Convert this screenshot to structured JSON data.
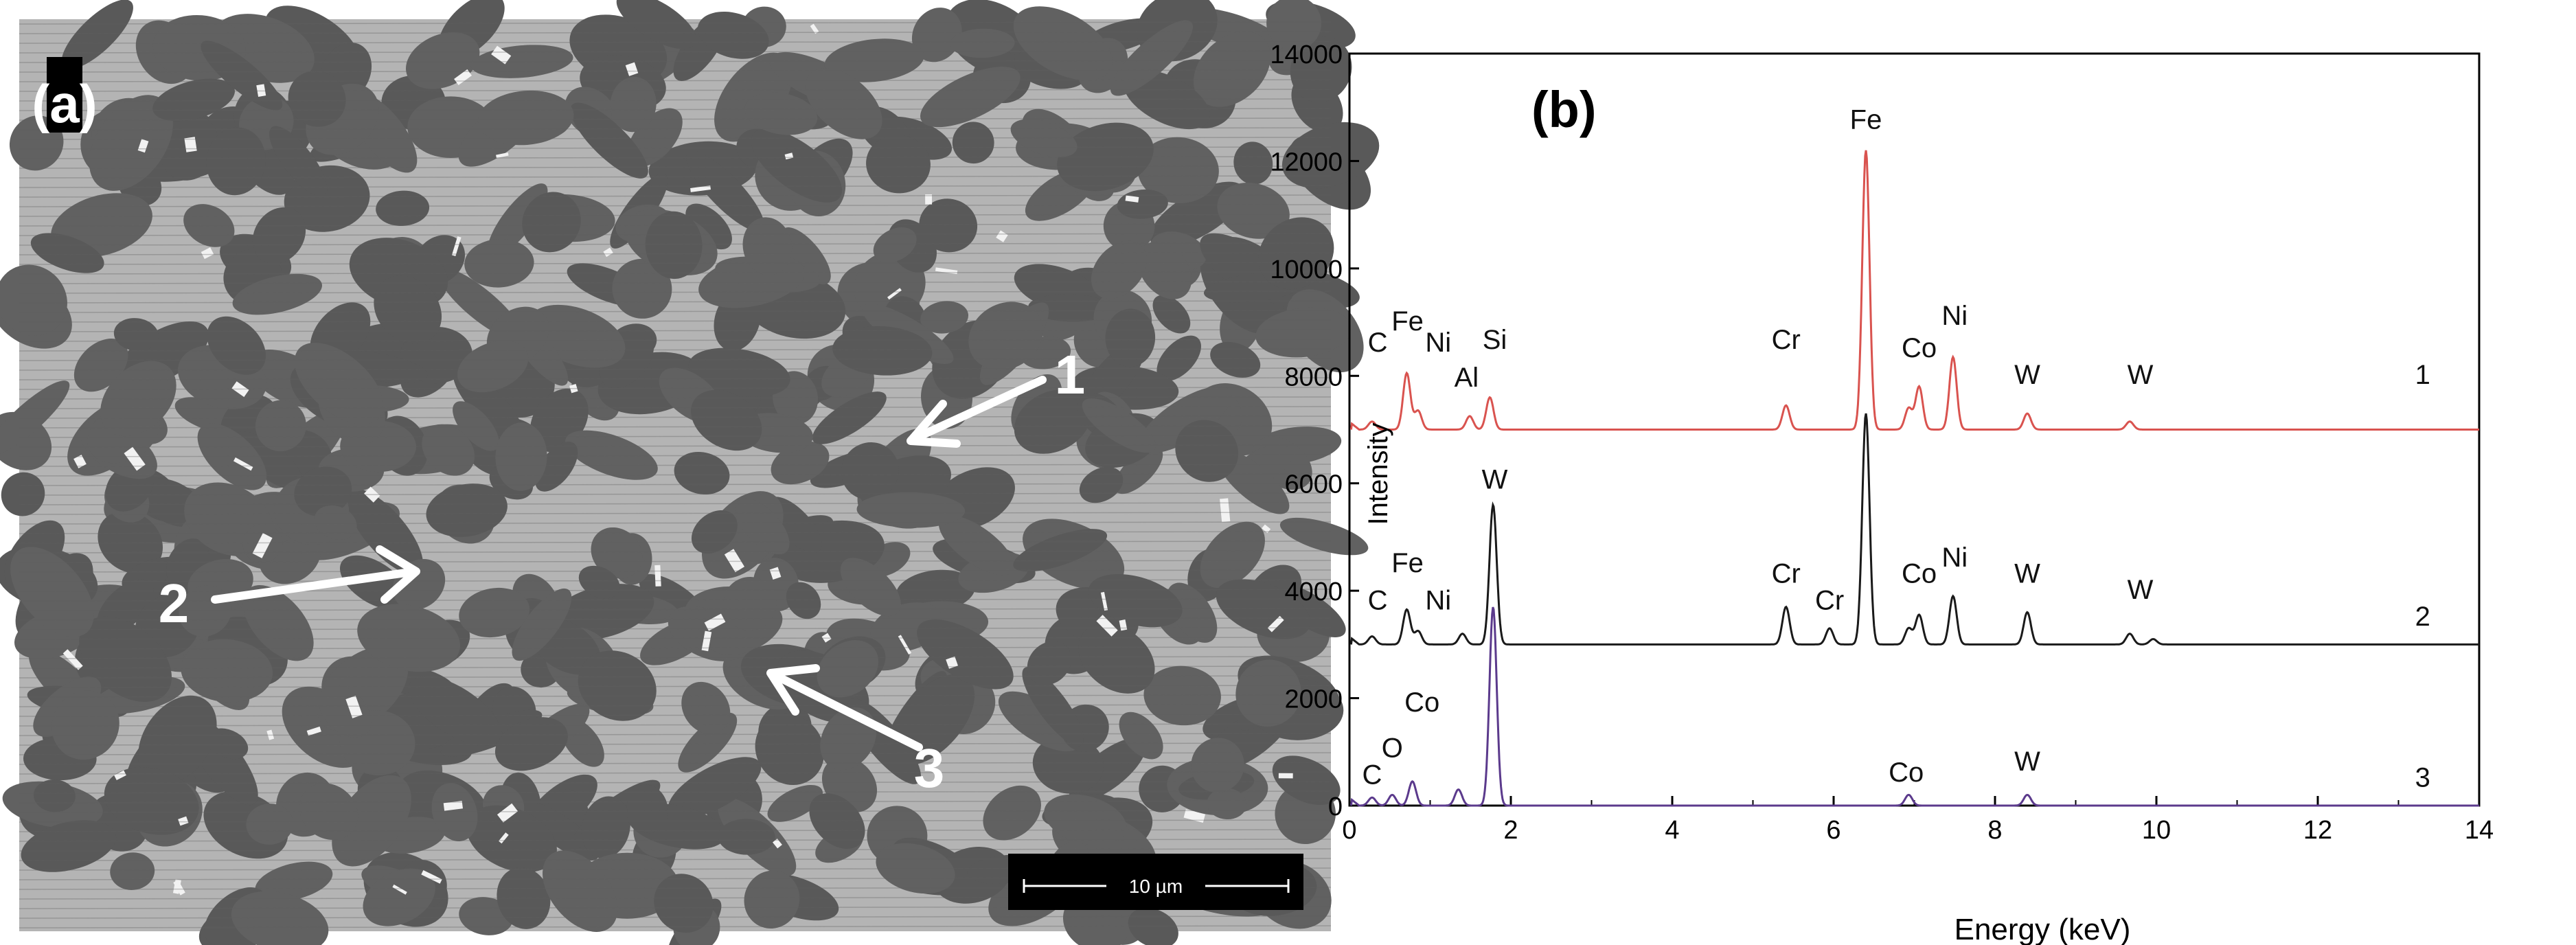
{
  "panel_a": {
    "label": "(a)",
    "arrow_labels": [
      "1",
      "2",
      "3"
    ],
    "scalebar": "10 µm"
  },
  "chart_data": {
    "type": "line",
    "panel_label": "(b)",
    "xlabel": "Energy (keV)",
    "ylabel": "Intensity",
    "xlim": [
      0,
      14
    ],
    "ylim": [
      0,
      14000
    ],
    "xticks": [
      0,
      2,
      4,
      6,
      8,
      10,
      12,
      14
    ],
    "yticks": [
      0,
      2000,
      4000,
      6000,
      8000,
      10000,
      12000,
      14000
    ],
    "grid": false,
    "series": [
      {
        "name": "1",
        "color": "#d9534f",
        "baseline": 7000,
        "peaks": [
          [
            0.28,
            150
          ],
          [
            0.71,
            1050
          ],
          [
            0.85,
            350
          ],
          [
            1.49,
            250
          ],
          [
            1.74,
            600
          ],
          [
            5.41,
            450
          ],
          [
            6.4,
            5200
          ],
          [
            6.93,
            400
          ],
          [
            7.06,
            800
          ],
          [
            7.48,
            1350
          ],
          [
            8.4,
            300
          ],
          [
            9.67,
            150
          ]
        ],
        "labels": [
          {
            "text": "C",
            "x": 0.35,
            "y": 8450
          },
          {
            "text": "Fe",
            "x": 0.72,
            "y": 8850
          },
          {
            "text": "Ni",
            "x": 1.1,
            "y": 8450
          },
          {
            "text": "Al",
            "x": 1.45,
            "y": 7800
          },
          {
            "text": "Si",
            "x": 1.8,
            "y": 8500
          },
          {
            "text": "Cr",
            "x": 5.41,
            "y": 8500
          },
          {
            "text": "Fe",
            "x": 6.4,
            "y": 12600
          },
          {
            "text": "Co",
            "x": 7.06,
            "y": 8350
          },
          {
            "text": "Ni",
            "x": 7.5,
            "y": 8950
          },
          {
            "text": "W",
            "x": 8.4,
            "y": 7850
          },
          {
            "text": "W",
            "x": 9.8,
            "y": 7850
          },
          {
            "text": "1",
            "x": 13.3,
            "y": 7850
          }
        ]
      },
      {
        "name": "2",
        "color": "#1a1a1a",
        "baseline": 3000,
        "peaks": [
          [
            0.28,
            150
          ],
          [
            0.71,
            650
          ],
          [
            0.85,
            250
          ],
          [
            1.4,
            200
          ],
          [
            1.78,
            2600
          ],
          [
            5.41,
            700
          ],
          [
            5.95,
            300
          ],
          [
            6.4,
            4300
          ],
          [
            6.93,
            300
          ],
          [
            7.06,
            550
          ],
          [
            7.48,
            900
          ],
          [
            8.4,
            600
          ],
          [
            9.67,
            200
          ],
          [
            9.96,
            100
          ]
        ],
        "labels": [
          {
            "text": "C",
            "x": 0.35,
            "y": 3650
          },
          {
            "text": "Fe",
            "x": 0.72,
            "y": 4350
          },
          {
            "text": "Ni",
            "x": 1.1,
            "y": 3650
          },
          {
            "text": "W",
            "x": 1.8,
            "y": 5900
          },
          {
            "text": "Cr",
            "x": 5.41,
            "y": 4150
          },
          {
            "text": "Cr",
            "x": 5.95,
            "y": 3650
          },
          {
            "text": "Co",
            "x": 7.06,
            "y": 4150
          },
          {
            "text": "Ni",
            "x": 7.5,
            "y": 4450
          },
          {
            "text": "W",
            "x": 8.4,
            "y": 4150
          },
          {
            "text": "W",
            "x": 9.8,
            "y": 3850
          },
          {
            "text": "2",
            "x": 13.3,
            "y": 3350
          }
        ]
      },
      {
        "name": "3",
        "color": "#5b3a8c",
        "baseline": 0,
        "peaks": [
          [
            0.28,
            150
          ],
          [
            0.53,
            200
          ],
          [
            0.78,
            450
          ],
          [
            1.35,
            300
          ],
          [
            1.78,
            3700
          ],
          [
            6.93,
            200
          ],
          [
            8.4,
            200
          ]
        ],
        "labels": [
          {
            "text": "C",
            "x": 0.28,
            "y": 400
          },
          {
            "text": "O",
            "x": 0.53,
            "y": 900
          },
          {
            "text": "Co",
            "x": 0.9,
            "y": 1750
          },
          {
            "text": "Co",
            "x": 6.9,
            "y": 450
          },
          {
            "text": "W",
            "x": 8.4,
            "y": 650
          },
          {
            "text": "3",
            "x": 13.3,
            "y": 350
          }
        ]
      }
    ]
  }
}
